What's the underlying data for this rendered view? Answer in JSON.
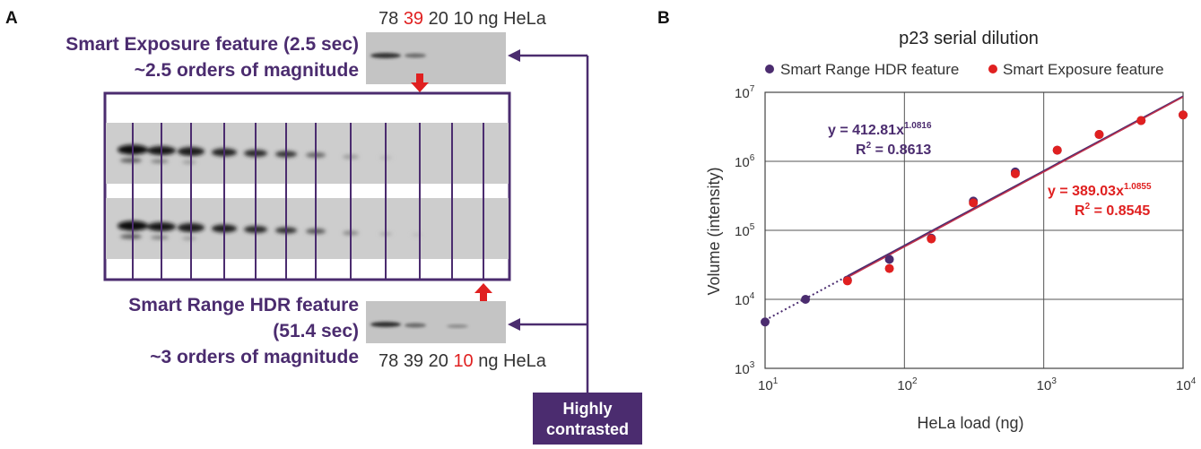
{
  "panel_a": {
    "letter": "A",
    "top": {
      "title": "Smart Exposure feature (2.5 sec)",
      "subtitle": "~2.5 orders of magnitude",
      "loads": [
        "78",
        "39",
        "20",
        "10"
      ],
      "unit": "ng HeLa",
      "highlight_index": 1
    },
    "bottom": {
      "title": "Smart Range HDR feature",
      "time": "(51.4 sec)",
      "subtitle": "~3 orders of magnitude",
      "loads": [
        "78",
        "39",
        "20",
        "10"
      ],
      "unit": "ng HeLa",
      "highlight_index": 3
    },
    "lanes": [
      "1",
      "2",
      "3",
      "4",
      "5",
      "6",
      "7",
      "8",
      "9",
      "10",
      "11",
      "12"
    ],
    "highly_contrasted": [
      "Highly",
      "contrasted"
    ]
  },
  "colors": {
    "purple": "#4b2c6f",
    "red": "#e02020"
  },
  "chart_data": {
    "type": "scatter",
    "panel_letter": "B",
    "title": "p23 serial dilution",
    "xlabel": "HeLa load (ng)",
    "ylabel": "Volume (intensity)",
    "xscale": "log",
    "yscale": "log",
    "xlim": [
      10,
      10000
    ],
    "ylim": [
      1000,
      10000000
    ],
    "x_ticks": [
      {
        "base": "10",
        "exp": "1"
      },
      {
        "base": "10",
        "exp": "2"
      },
      {
        "base": "10",
        "exp": "3"
      },
      {
        "base": "10",
        "exp": "4"
      }
    ],
    "y_ticks": [
      {
        "base": "10",
        "exp": "3"
      },
      {
        "base": "10",
        "exp": "4"
      },
      {
        "base": "10",
        "exp": "5"
      },
      {
        "base": "10",
        "exp": "6"
      },
      {
        "base": "10",
        "exp": "7"
      }
    ],
    "grid": true,
    "legend_position": "top",
    "series": [
      {
        "name": "Smart Range HDR feature",
        "color": "#4b2c6f",
        "x": [
          10,
          19.5,
          39,
          78,
          156,
          312.5,
          625,
          1250,
          2500,
          5000,
          10000
        ],
        "y": [
          4700,
          10000,
          19000,
          38000,
          77000,
          265000,
          700000,
          1450000,
          2450000,
          3900000,
          4700000
        ],
        "fit": {
          "a": 412.81,
          "b": 1.0816,
          "equation": "y = 412.81x",
          "exponent": "1.0816",
          "r2_label": "R",
          "r2_exp": "2",
          "r2_value": " = 0.8613"
        }
      },
      {
        "name": "Smart Exposure feature",
        "color": "#e02020",
        "x": [
          39,
          78,
          156,
          312.5,
          625,
          1250,
          2500,
          5000,
          10000
        ],
        "y": [
          18500,
          28000,
          75000,
          250000,
          660000,
          1450000,
          2450000,
          3900000,
          4700000
        ],
        "fit": {
          "a": 389.03,
          "b": 1.0855,
          "equation": "y = 389.03x",
          "exponent": "1.0855",
          "r2_label": "R",
          "r2_exp": "2",
          "r2_value": " = 0.8545"
        }
      }
    ]
  }
}
